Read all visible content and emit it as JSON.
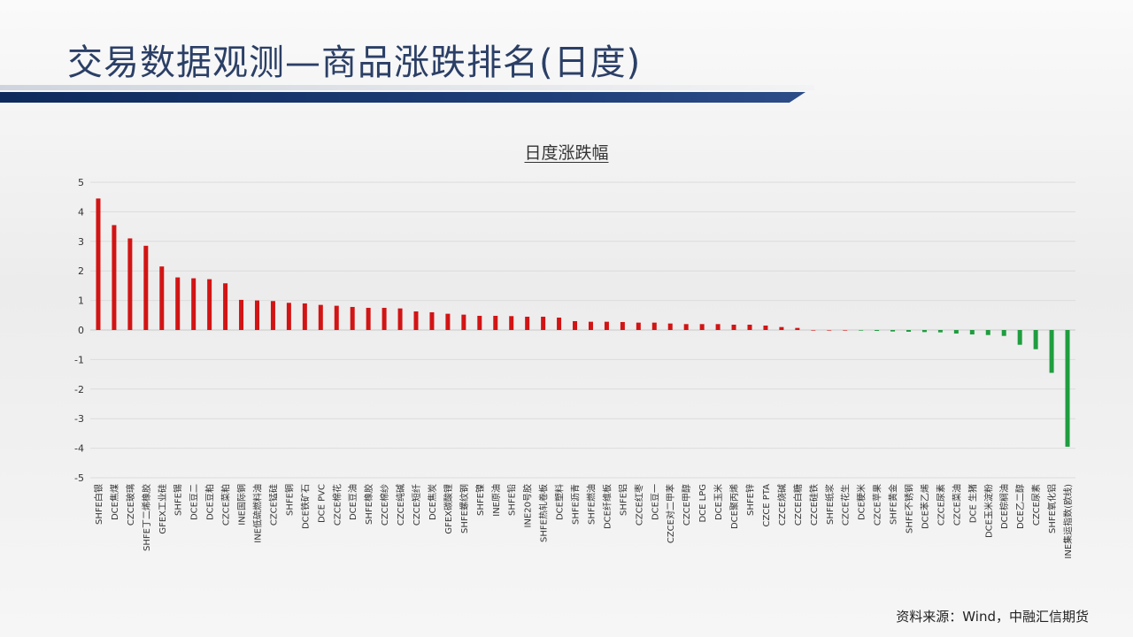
{
  "slide": {
    "title": "交易数据观测—商品涨跌排名(日度)",
    "source": "资料来源：Wind，中融汇信期货"
  },
  "colors": {
    "up": "#d21414",
    "down": "#1f9d3f",
    "title": "#2b3f66",
    "band": "#0e2a5c"
  },
  "chart_data": {
    "type": "bar",
    "title": "日度涨跌幅",
    "xlabel": "",
    "ylabel": "",
    "ylim": [
      -5,
      5
    ],
    "yticks": [
      5,
      4,
      3,
      2,
      1,
      0,
      -1,
      -2,
      -3,
      -4,
      -5
    ],
    "grid": true,
    "categories": [
      "SHFE白银",
      "DCE焦煤",
      "CZCE玻璃",
      "SHFE丁二烯橡胶",
      "GFEX工业硅",
      "SHFE锡",
      "DCE豆二",
      "DCE豆粕",
      "CZCE菜粕",
      "INE国际铜",
      "INE低硫燃料油",
      "CZCE锰硅",
      "SHFE铜",
      "DCE铁矿石",
      "DCE PVC",
      "CZCE棉花",
      "DCE豆油",
      "SHFE橡胶",
      "CZCE棉纱",
      "CZCE纯碱",
      "CZCE短纤",
      "DCE焦炭",
      "GFEX碳酸锂",
      "SHFE螺纹钢",
      "SHFE镍",
      "INE原油",
      "SHFE铅",
      "INE20号胶",
      "SHFE热轧卷板",
      "DCE塑料",
      "SHFE沥青",
      "SHFE燃油",
      "DCE纤维板",
      "SHFE铝",
      "CZCE红枣",
      "DCE豆一",
      "CZCE对二甲苯",
      "CZCE甲醇",
      "DCE LPG",
      "DCE玉米",
      "DCE聚丙烯",
      "SHFE锌",
      "CZCE PTA",
      "CZCE烧碱",
      "CZCE白糖",
      "CZCE硅铁",
      "SHFE纸浆",
      "CZCE花生",
      "DCE粳米",
      "CZCE苹果",
      "SHFE黄金",
      "SHFE不锈钢",
      "DCE苯乙烯",
      "CZCE尿素",
      "CZCE菜油",
      "DCE 生猪",
      "DCE玉米淀粉",
      "DCE棕榈油",
      "DCE乙二醇",
      "CZCE尿素",
      "SHFE氧化铝",
      "INE集运指数(欧线)"
    ],
    "values": [
      4.45,
      3.55,
      3.1,
      2.85,
      2.15,
      1.78,
      1.75,
      1.72,
      1.58,
      1.02,
      1.0,
      0.98,
      0.92,
      0.9,
      0.85,
      0.82,
      0.78,
      0.75,
      0.75,
      0.73,
      0.63,
      0.6,
      0.55,
      0.52,
      0.48,
      0.48,
      0.47,
      0.45,
      0.45,
      0.42,
      0.3,
      0.28,
      0.28,
      0.27,
      0.25,
      0.25,
      0.22,
      0.2,
      0.2,
      0.2,
      0.18,
      0.18,
      0.15,
      0.1,
      0.07,
      0.0,
      0.0,
      0.0,
      -0.02,
      -0.03,
      -0.05,
      -0.06,
      -0.07,
      -0.08,
      -0.12,
      -0.15,
      -0.17,
      -0.2,
      -0.5,
      -0.65,
      -1.45,
      -3.95
    ]
  }
}
